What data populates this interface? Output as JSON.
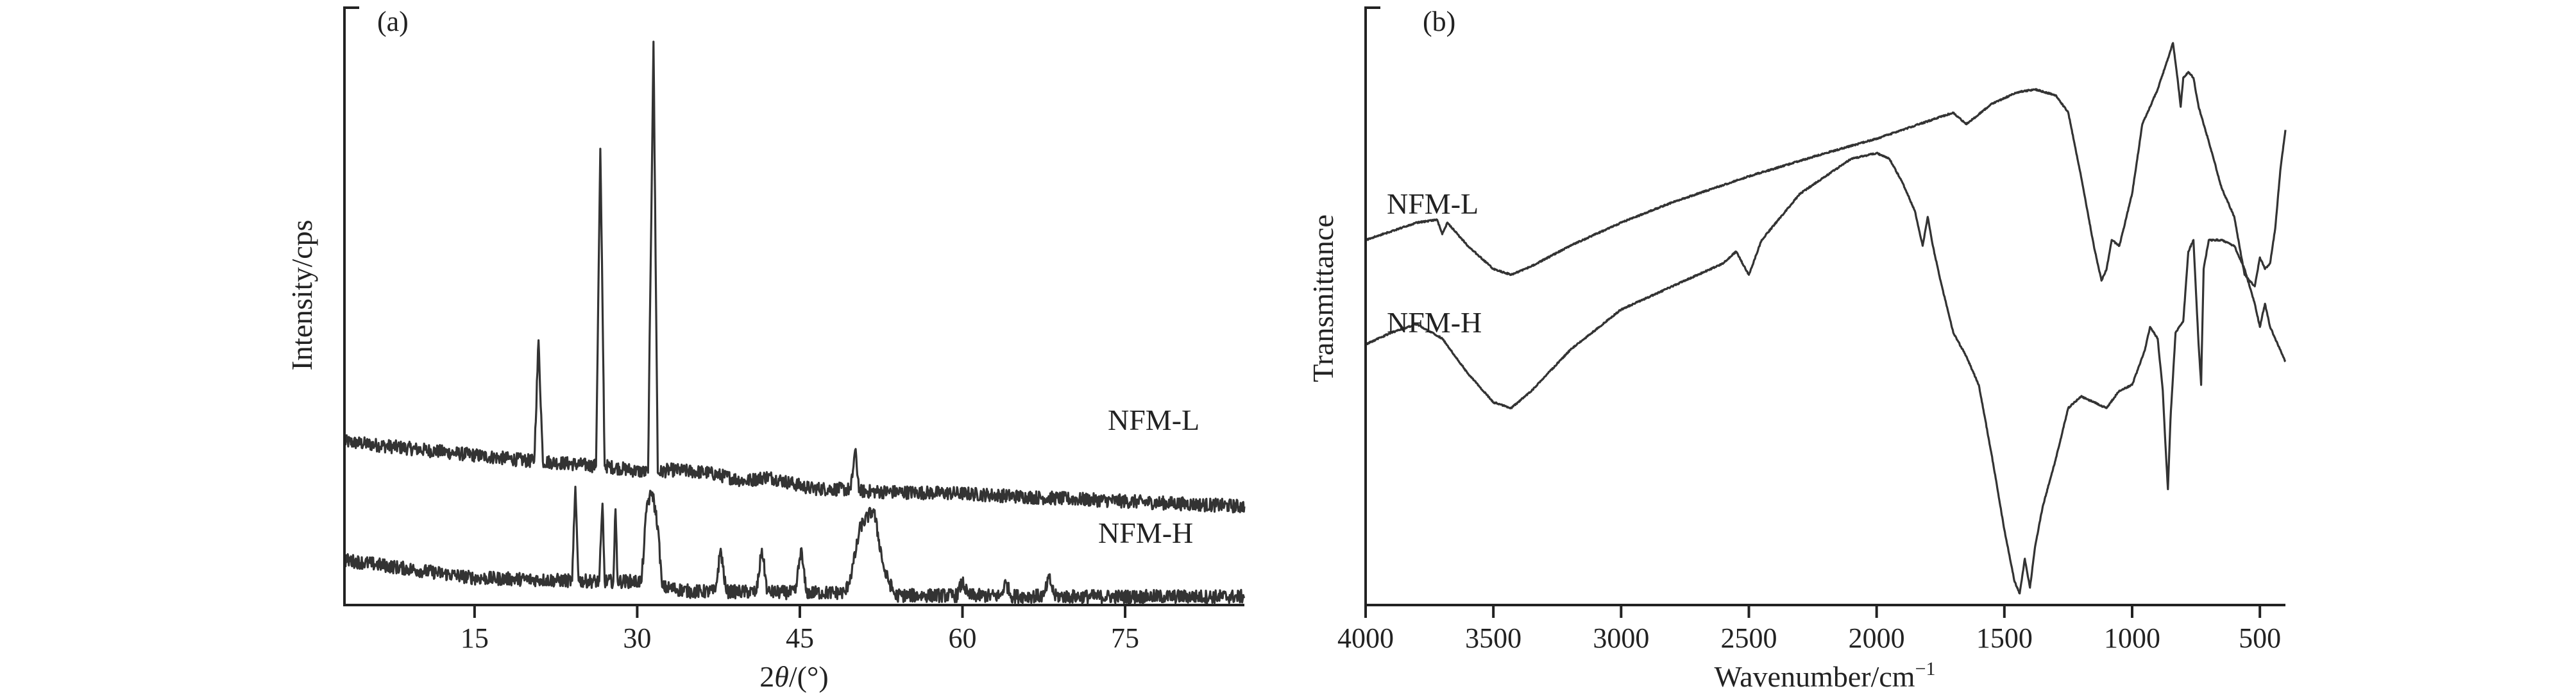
{
  "chart_data": [
    {
      "panel": "(a)",
      "type": "line",
      "xlabel_prefix": "2",
      "xlabel_theta": "θ",
      "xlabel_suffix": "/(°)",
      "ylabel": "Intensity/cps",
      "xlim": [
        3,
        86
      ],
      "ylim": [
        0,
        100
      ],
      "xticks": [
        15,
        30,
        45,
        60,
        75
      ],
      "y_tick_labels": "none",
      "colors": {
        "trace": "#333333",
        "axis": "#222222"
      },
      "series": [
        {
          "name": "NFM-L",
          "x": [
            3,
            20.5,
            20.9,
            21.3,
            26.2,
            26.6,
            27.0,
            31.0,
            31.5,
            31.9,
            33.0,
            36.5,
            40.0,
            42.0,
            46.0,
            49.7,
            50.1,
            50.5,
            59.9,
            68.0,
            86
          ],
          "y": [
            29,
            25.5,
            47,
            25.5,
            24.7,
            81,
            24.7,
            23.5,
            100,
            23.5,
            24,
            23.5,
            22,
            22.8,
            20.7,
            20.5,
            27.5,
            20.2,
            19.8,
            19,
            17.5
          ]
        },
        {
          "name": "NFM-H",
          "x": [
            3,
            15,
            20.9,
            24.0,
            24.3,
            24.6,
            26.5,
            26.8,
            27.0,
            27.8,
            28.0,
            28.2,
            30.4,
            30.9,
            31.4,
            31.9,
            32.3,
            35.0,
            37.2,
            37.7,
            38.2,
            41.0,
            41.5,
            42.0,
            44.6,
            45.1,
            45.6,
            49.2,
            49.8,
            50.6,
            51.8,
            52.8,
            53.8,
            56.0,
            59.5,
            60.0,
            60.5,
            63.5,
            64.0,
            64.5,
            67.5,
            68.0,
            68.5,
            70.0,
            86
          ],
          "y": [
            8,
            4.8,
            4.5,
            4.3,
            21,
            4.3,
            4.2,
            18,
            4.2,
            4.2,
            17,
            4.2,
            4.2,
            18,
            20,
            14,
            3.2,
            2.4,
            2.4,
            10,
            2.4,
            2.3,
            10,
            2.3,
            2.2,
            10,
            2.2,
            2.2,
            6,
            14,
            17,
            6,
            1.7,
            1.7,
            1.7,
            4.2,
            1.7,
            1.6,
            4.0,
            1.6,
            1.6,
            4.8,
            1.6,
            1.5,
            1.5
          ]
        }
      ],
      "annotations": [
        "NFM-L",
        "NFM-H"
      ]
    },
    {
      "panel": "(b)",
      "type": "line",
      "xlabel": "Wavenumber/cm",
      "xlabel_sup": "−1",
      "ylabel": "Transmittance",
      "xlim": [
        4000,
        400
      ],
      "ylim": [
        0,
        100
      ],
      "xticks": [
        4000,
        3500,
        3000,
        2500,
        2000,
        1500,
        1000,
        500
      ],
      "y_tick_labels": "none",
      "colors": {
        "trace": "#333333",
        "axis": "#222222"
      },
      "series": [
        {
          "name": "NFM-L",
          "x": [
            4000,
            3800,
            3720,
            3700,
            3680,
            3650,
            3600,
            3500,
            3430,
            3350,
            3200,
            3000,
            2800,
            2500,
            2200,
            2000,
            1800,
            1700,
            1650,
            1620,
            1550,
            1450,
            1380,
            1300,
            1250,
            1200,
            1150,
            1120,
            1100,
            1080,
            1050,
            1000,
            960,
            930,
            900,
            870,
            840,
            820,
            810,
            800,
            780,
            760,
            740,
            700,
            650,
            600,
            560,
            520,
            500,
            480,
            460,
            440,
            420,
            400
          ],
          "y": [
            63,
            66,
            66.5,
            64,
            66,
            64.5,
            62,
            58,
            57,
            58.5,
            62,
            66,
            69.5,
            74,
            78,
            80.5,
            83.5,
            85,
            83,
            84,
            86.5,
            88.5,
            89,
            88,
            85,
            74,
            62,
            56,
            58,
            63,
            62,
            71,
            83,
            86,
            89,
            93,
            97,
            90,
            86,
            91,
            92,
            91,
            86,
            80,
            72,
            67,
            57,
            55,
            60,
            58,
            59,
            65,
            75,
            82
          ]
        },
        {
          "name": "NFM-H",
          "x": [
            4000,
            3900,
            3800,
            3700,
            3600,
            3500,
            3430,
            3350,
            3200,
            3000,
            2900,
            2800,
            2600,
            2550,
            2500,
            2450,
            2300,
            2100,
            2000,
            1950,
            1900,
            1850,
            1820,
            1800,
            1780,
            1750,
            1700,
            1650,
            1600,
            1550,
            1500,
            1460,
            1440,
            1420,
            1400,
            1380,
            1350,
            1300,
            1250,
            1200,
            1150,
            1100,
            1050,
            1000,
            950,
            930,
            900,
            880,
            870,
            860,
            850,
            830,
            800,
            780,
            760,
            740,
            730,
            720,
            700,
            650,
            600,
            560,
            520,
            500,
            480,
            460,
            440,
            400
          ],
          "y": [
            45,
            47,
            48.5,
            46,
            40,
            35,
            34,
            37,
            44,
            51,
            53,
            55,
            59,
            61,
            57,
            63,
            71,
            77,
            78,
            77,
            73,
            68,
            62,
            67,
            62,
            56,
            47,
            43,
            38,
            26,
            13,
            4,
            2,
            8,
            3,
            10,
            17,
            25,
            34,
            36,
            35,
            34,
            37,
            38,
            44,
            48,
            46,
            37,
            28,
            20,
            32,
            47,
            49,
            61,
            63,
            45,
            38,
            58,
            63,
            63,
            62,
            58,
            52,
            48,
            52,
            48,
            46,
            42
          ]
        }
      ],
      "annotations": [
        "NFM-L",
        "NFM-H"
      ]
    }
  ]
}
